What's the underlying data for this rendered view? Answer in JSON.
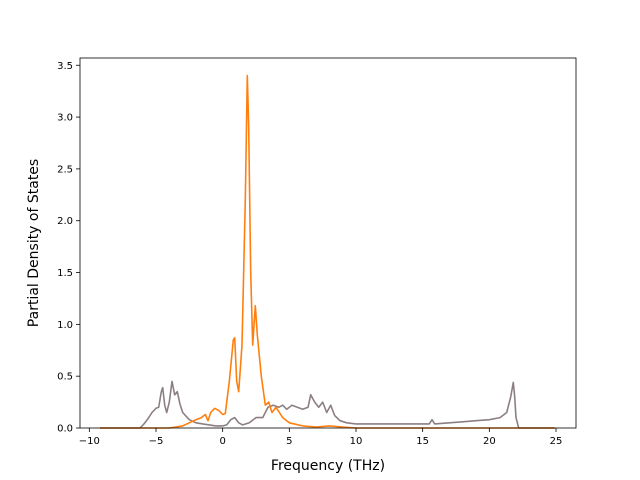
{
  "chart_data": {
    "type": "line",
    "title": "",
    "xlabel": "Frequency (THz)",
    "ylabel": "Partial Density of States",
    "xlim": [
      -10.7,
      26.5
    ],
    "ylim": [
      0,
      3.57
    ],
    "xticks": [
      -10,
      -5,
      0,
      5,
      10,
      15,
      20,
      25
    ],
    "yticks": [
      0.0,
      0.5,
      1.0,
      1.5,
      2.0,
      2.5,
      3.0,
      3.5
    ],
    "xtick_labels": [
      "−10",
      "−5",
      "0",
      "5",
      "10",
      "15",
      "20",
      "25"
    ],
    "ytick_labels": [
      "0.0",
      "0.5",
      "1.0",
      "1.5",
      "2.0",
      "2.5",
      "3.0",
      "3.5"
    ],
    "grid": false,
    "legend": "none",
    "series": [
      {
        "color": "#8c7f82",
        "points": [
          [
            -9.2,
            0.0
          ],
          [
            -6.2,
            0.0
          ],
          [
            -5.9,
            0.04
          ],
          [
            -5.6,
            0.09
          ],
          [
            -5.3,
            0.15
          ],
          [
            -5.0,
            0.19
          ],
          [
            -4.8,
            0.2
          ],
          [
            -4.6,
            0.35
          ],
          [
            -4.5,
            0.39
          ],
          [
            -4.35,
            0.22
          ],
          [
            -4.2,
            0.15
          ],
          [
            -4.0,
            0.25
          ],
          [
            -3.8,
            0.45
          ],
          [
            -3.6,
            0.32
          ],
          [
            -3.4,
            0.35
          ],
          [
            -3.2,
            0.23
          ],
          [
            -3.0,
            0.15
          ],
          [
            -2.5,
            0.08
          ],
          [
            -2.0,
            0.05
          ],
          [
            -1.5,
            0.04
          ],
          [
            -1.0,
            0.03
          ],
          [
            -0.5,
            0.02
          ],
          [
            0.0,
            0.02
          ],
          [
            0.3,
            0.03
          ],
          [
            0.6,
            0.08
          ],
          [
            0.9,
            0.1
          ],
          [
            1.2,
            0.05
          ],
          [
            1.5,
            0.03
          ],
          [
            2.0,
            0.05
          ],
          [
            2.5,
            0.1
          ],
          [
            3.0,
            0.1
          ],
          [
            3.4,
            0.2
          ],
          [
            3.8,
            0.22
          ],
          [
            4.2,
            0.2
          ],
          [
            4.5,
            0.22
          ],
          [
            4.8,
            0.18
          ],
          [
            5.2,
            0.22
          ],
          [
            5.6,
            0.2
          ],
          [
            6.0,
            0.18
          ],
          [
            6.4,
            0.2
          ],
          [
            6.6,
            0.32
          ],
          [
            6.9,
            0.25
          ],
          [
            7.2,
            0.2
          ],
          [
            7.5,
            0.25
          ],
          [
            7.8,
            0.15
          ],
          [
            8.1,
            0.22
          ],
          [
            8.4,
            0.12
          ],
          [
            8.8,
            0.07
          ],
          [
            9.3,
            0.05
          ],
          [
            10.0,
            0.04
          ],
          [
            12.0,
            0.04
          ],
          [
            14.0,
            0.04
          ],
          [
            15.5,
            0.04
          ],
          [
            15.7,
            0.08
          ],
          [
            15.9,
            0.04
          ],
          [
            17.0,
            0.05
          ],
          [
            18.0,
            0.06
          ],
          [
            19.0,
            0.07
          ],
          [
            20.0,
            0.08
          ],
          [
            20.8,
            0.1
          ],
          [
            21.3,
            0.15
          ],
          [
            21.6,
            0.3
          ],
          [
            21.8,
            0.44
          ],
          [
            21.9,
            0.3
          ],
          [
            22.0,
            0.1
          ],
          [
            22.2,
            0.0
          ],
          [
            24.9,
            0.0
          ]
        ]
      },
      {
        "color": "#ff7f0e",
        "points": [
          [
            -9.2,
            0.0
          ],
          [
            -4.0,
            0.0
          ],
          [
            -3.0,
            0.02
          ],
          [
            -2.5,
            0.05
          ],
          [
            -2.0,
            0.08
          ],
          [
            -1.6,
            0.1
          ],
          [
            -1.3,
            0.13
          ],
          [
            -1.1,
            0.07
          ],
          [
            -0.9,
            0.15
          ],
          [
            -0.6,
            0.19
          ],
          [
            -0.3,
            0.17
          ],
          [
            0.0,
            0.13
          ],
          [
            0.2,
            0.14
          ],
          [
            0.5,
            0.45
          ],
          [
            0.8,
            0.85
          ],
          [
            0.9,
            0.87
          ],
          [
            1.05,
            0.45
          ],
          [
            1.2,
            0.35
          ],
          [
            1.45,
            0.8
          ],
          [
            1.7,
            2.2
          ],
          [
            1.85,
            3.4
          ],
          [
            1.95,
            2.9
          ],
          [
            2.1,
            1.5
          ],
          [
            2.25,
            0.8
          ],
          [
            2.45,
            1.18
          ],
          [
            2.6,
            0.9
          ],
          [
            2.9,
            0.5
          ],
          [
            3.2,
            0.22
          ],
          [
            3.45,
            0.25
          ],
          [
            3.7,
            0.15
          ],
          [
            4.0,
            0.2
          ],
          [
            4.5,
            0.1
          ],
          [
            5.0,
            0.05
          ],
          [
            6.0,
            0.02
          ],
          [
            7.0,
            0.01
          ],
          [
            8.0,
            0.02
          ],
          [
            9.0,
            0.01
          ],
          [
            10.0,
            0.0
          ],
          [
            24.9,
            0.0
          ]
        ]
      }
    ]
  }
}
